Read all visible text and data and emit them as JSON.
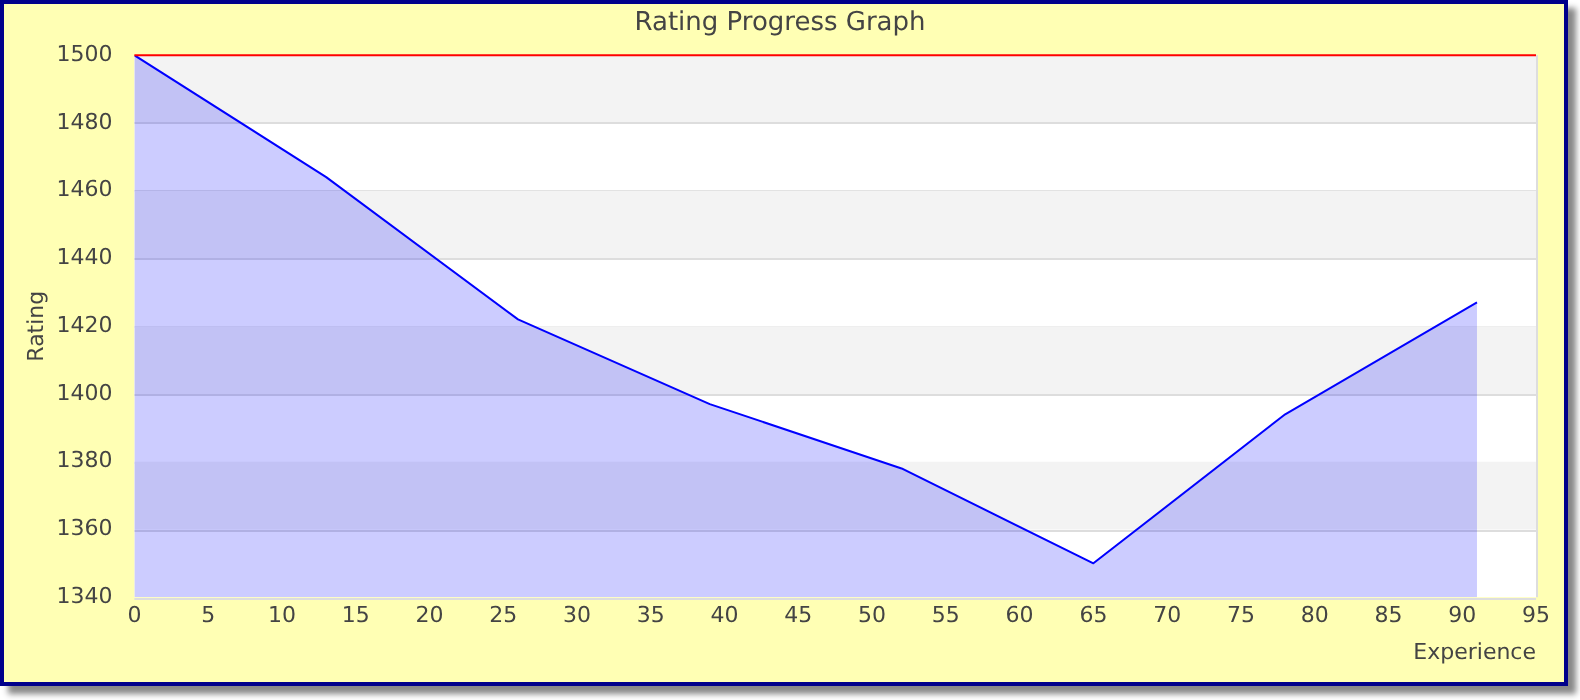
{
  "chart_data": {
    "type": "area",
    "title": "Rating Progress Graph",
    "xlabel": "Experience",
    "ylabel": "Rating",
    "x": [
      0,
      13,
      26,
      39,
      52,
      65,
      78,
      91
    ],
    "series": [
      {
        "color": "#0000ff",
        "values": [
          1500,
          1464,
          1422,
          1397,
          1378,
          1350,
          1394,
          1427
        ]
      }
    ],
    "xlim": [
      0,
      95
    ],
    "xticks": [
      0,
      5,
      10,
      15,
      20,
      25,
      30,
      35,
      40,
      45,
      50,
      55,
      60,
      65,
      70,
      75,
      80,
      85,
      90,
      95
    ],
    "ylim": [
      1340,
      1500
    ],
    "yticks": [
      1340,
      1360,
      1380,
      1400,
      1420,
      1440,
      1460,
      1480,
      1500
    ],
    "grid": "y",
    "legend": false,
    "ref_lines": [
      {
        "axis": "y",
        "value": 1500,
        "color": "#ff0000"
      }
    ]
  }
}
